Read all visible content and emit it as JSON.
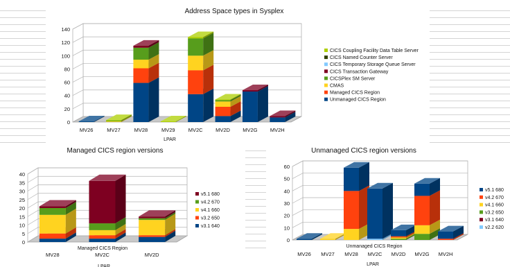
{
  "chart_data": [
    {
      "type": "bar",
      "stacked": true,
      "three_d": true,
      "title": "Address Space types in Sysplex",
      "xlabel": "LPAR",
      "ylabel": "",
      "ylim": [
        0,
        140
      ],
      "yticks": [
        0,
        20,
        40,
        60,
        80,
        100,
        120,
        140
      ],
      "categories": [
        "MV26",
        "MV27",
        "MV28",
        "MV29",
        "MV2C",
        "MV2D",
        "MV2G",
        "MV2H"
      ],
      "legend_position": "right",
      "legend_order": [
        "CICS Coupling Facility Data Table Server",
        "CICS Named Counter Server",
        "CICS Temporary Storage Queue Server",
        "CICS Transaction Gateway",
        "CICSPlex SM Server",
        "CMAS",
        "Managed CICS Region",
        "Unmanaged CICS Region"
      ],
      "series": [
        {
          "name": "Unmanaged CICS Region",
          "color": "#004586",
          "values": [
            1,
            0,
            59,
            0,
            42,
            9,
            46,
            7
          ]
        },
        {
          "name": "Managed CICS Region",
          "color": "#ff420e",
          "values": [
            0,
            0,
            22,
            0,
            36,
            14,
            0,
            0
          ]
        },
        {
          "name": "CMAS",
          "color": "#ffd320",
          "values": [
            0,
            1,
            13,
            0,
            22,
            8,
            0,
            0
          ]
        },
        {
          "name": "CICSPlex SM Server",
          "color": "#579d1c",
          "values": [
            0,
            1,
            18,
            0,
            26,
            2,
            0,
            0
          ]
        },
        {
          "name": "CICS Transaction Gateway",
          "color": "#7e0021",
          "values": [
            0,
            0,
            3,
            0,
            0,
            0,
            2,
            2
          ]
        },
        {
          "name": "CICS Temporary Storage Queue Server",
          "color": "#83caff",
          "values": [
            0,
            0,
            0,
            0,
            0,
            0,
            0,
            0
          ]
        },
        {
          "name": "CICS Named Counter Server",
          "color": "#314004",
          "values": [
            0,
            0,
            0,
            0,
            0,
            0,
            0,
            0
          ]
        },
        {
          "name": "CICS Coupling Facility Data Table Server",
          "color": "#aecf00",
          "values": [
            0,
            1,
            0,
            1,
            2,
            1,
            0,
            0
          ]
        }
      ]
    },
    {
      "type": "bar",
      "stacked": true,
      "three_d": true,
      "title": "Managed CICS region versions",
      "xlabel": "LPAR",
      "ylabel": "",
      "inner_label": "Managed CICS Region",
      "ylim": [
        0,
        40
      ],
      "yticks": [
        0,
        5,
        10,
        15,
        20,
        25,
        30,
        35,
        40
      ],
      "categories": [
        "MV28",
        "MV2C",
        "MV2D"
      ],
      "legend_position": "right",
      "legend_order": [
        "v5.1 680",
        "v4.2 670",
        "v4.1 660",
        "v3.2 650",
        "v3.1 640"
      ],
      "series": [
        {
          "name": "v3.1 640",
          "color": "#004586",
          "values": [
            2,
            2,
            3
          ]
        },
        {
          "name": "v3.2 650",
          "color": "#ff420e",
          "values": [
            3,
            2,
            1
          ]
        },
        {
          "name": "v4.1 660",
          "color": "#ffd320",
          "values": [
            11,
            3,
            9
          ]
        },
        {
          "name": "v4.2 670",
          "color": "#579d1c",
          "values": [
            4,
            4,
            1
          ]
        },
        {
          "name": "v5.1 680",
          "color": "#7e0021",
          "values": [
            1,
            25,
            1
          ]
        }
      ]
    },
    {
      "type": "bar",
      "stacked": true,
      "three_d": true,
      "title": "Unmanaged CICS region versions",
      "xlabel": "LPAR",
      "ylabel": "",
      "inner_label": "Unmanaged CICS Region",
      "ylim": [
        0,
        60
      ],
      "yticks": [
        0,
        10,
        20,
        30,
        40,
        50,
        60
      ],
      "categories": [
        "MV26",
        "MV27",
        "MV28",
        "MV2C",
        "MV2D",
        "MV2G",
        "MV2H"
      ],
      "legend_position": "right",
      "legend_order": [
        "v5.1 680",
        "v4.2 670",
        "v4.1 660",
        "v3.2 650",
        "v3.1 640",
        "v2.2 620"
      ],
      "series": [
        {
          "name": "v2.2 620",
          "color": "#83caff",
          "values": [
            0,
            0,
            0,
            1,
            0,
            0,
            0
          ]
        },
        {
          "name": "v3.1 640",
          "color": "#7e0021",
          "values": [
            0,
            0,
            0,
            0,
            0,
            0,
            0
          ]
        },
        {
          "name": "v3.2 650",
          "color": "#579d1c",
          "values": [
            0,
            0,
            0,
            0,
            1,
            5,
            0
          ]
        },
        {
          "name": "v4.1 660",
          "color": "#ffd320",
          "values": [
            0,
            1,
            9,
            0,
            1,
            7,
            0
          ]
        },
        {
          "name": "v4.2 670",
          "color": "#ff420e",
          "values": [
            0,
            0,
            31,
            0,
            1,
            24,
            1
          ]
        },
        {
          "name": "v5.1 680",
          "color": "#004586",
          "values": [
            1,
            0,
            19,
            41,
            5,
            10,
            6
          ]
        }
      ]
    }
  ]
}
